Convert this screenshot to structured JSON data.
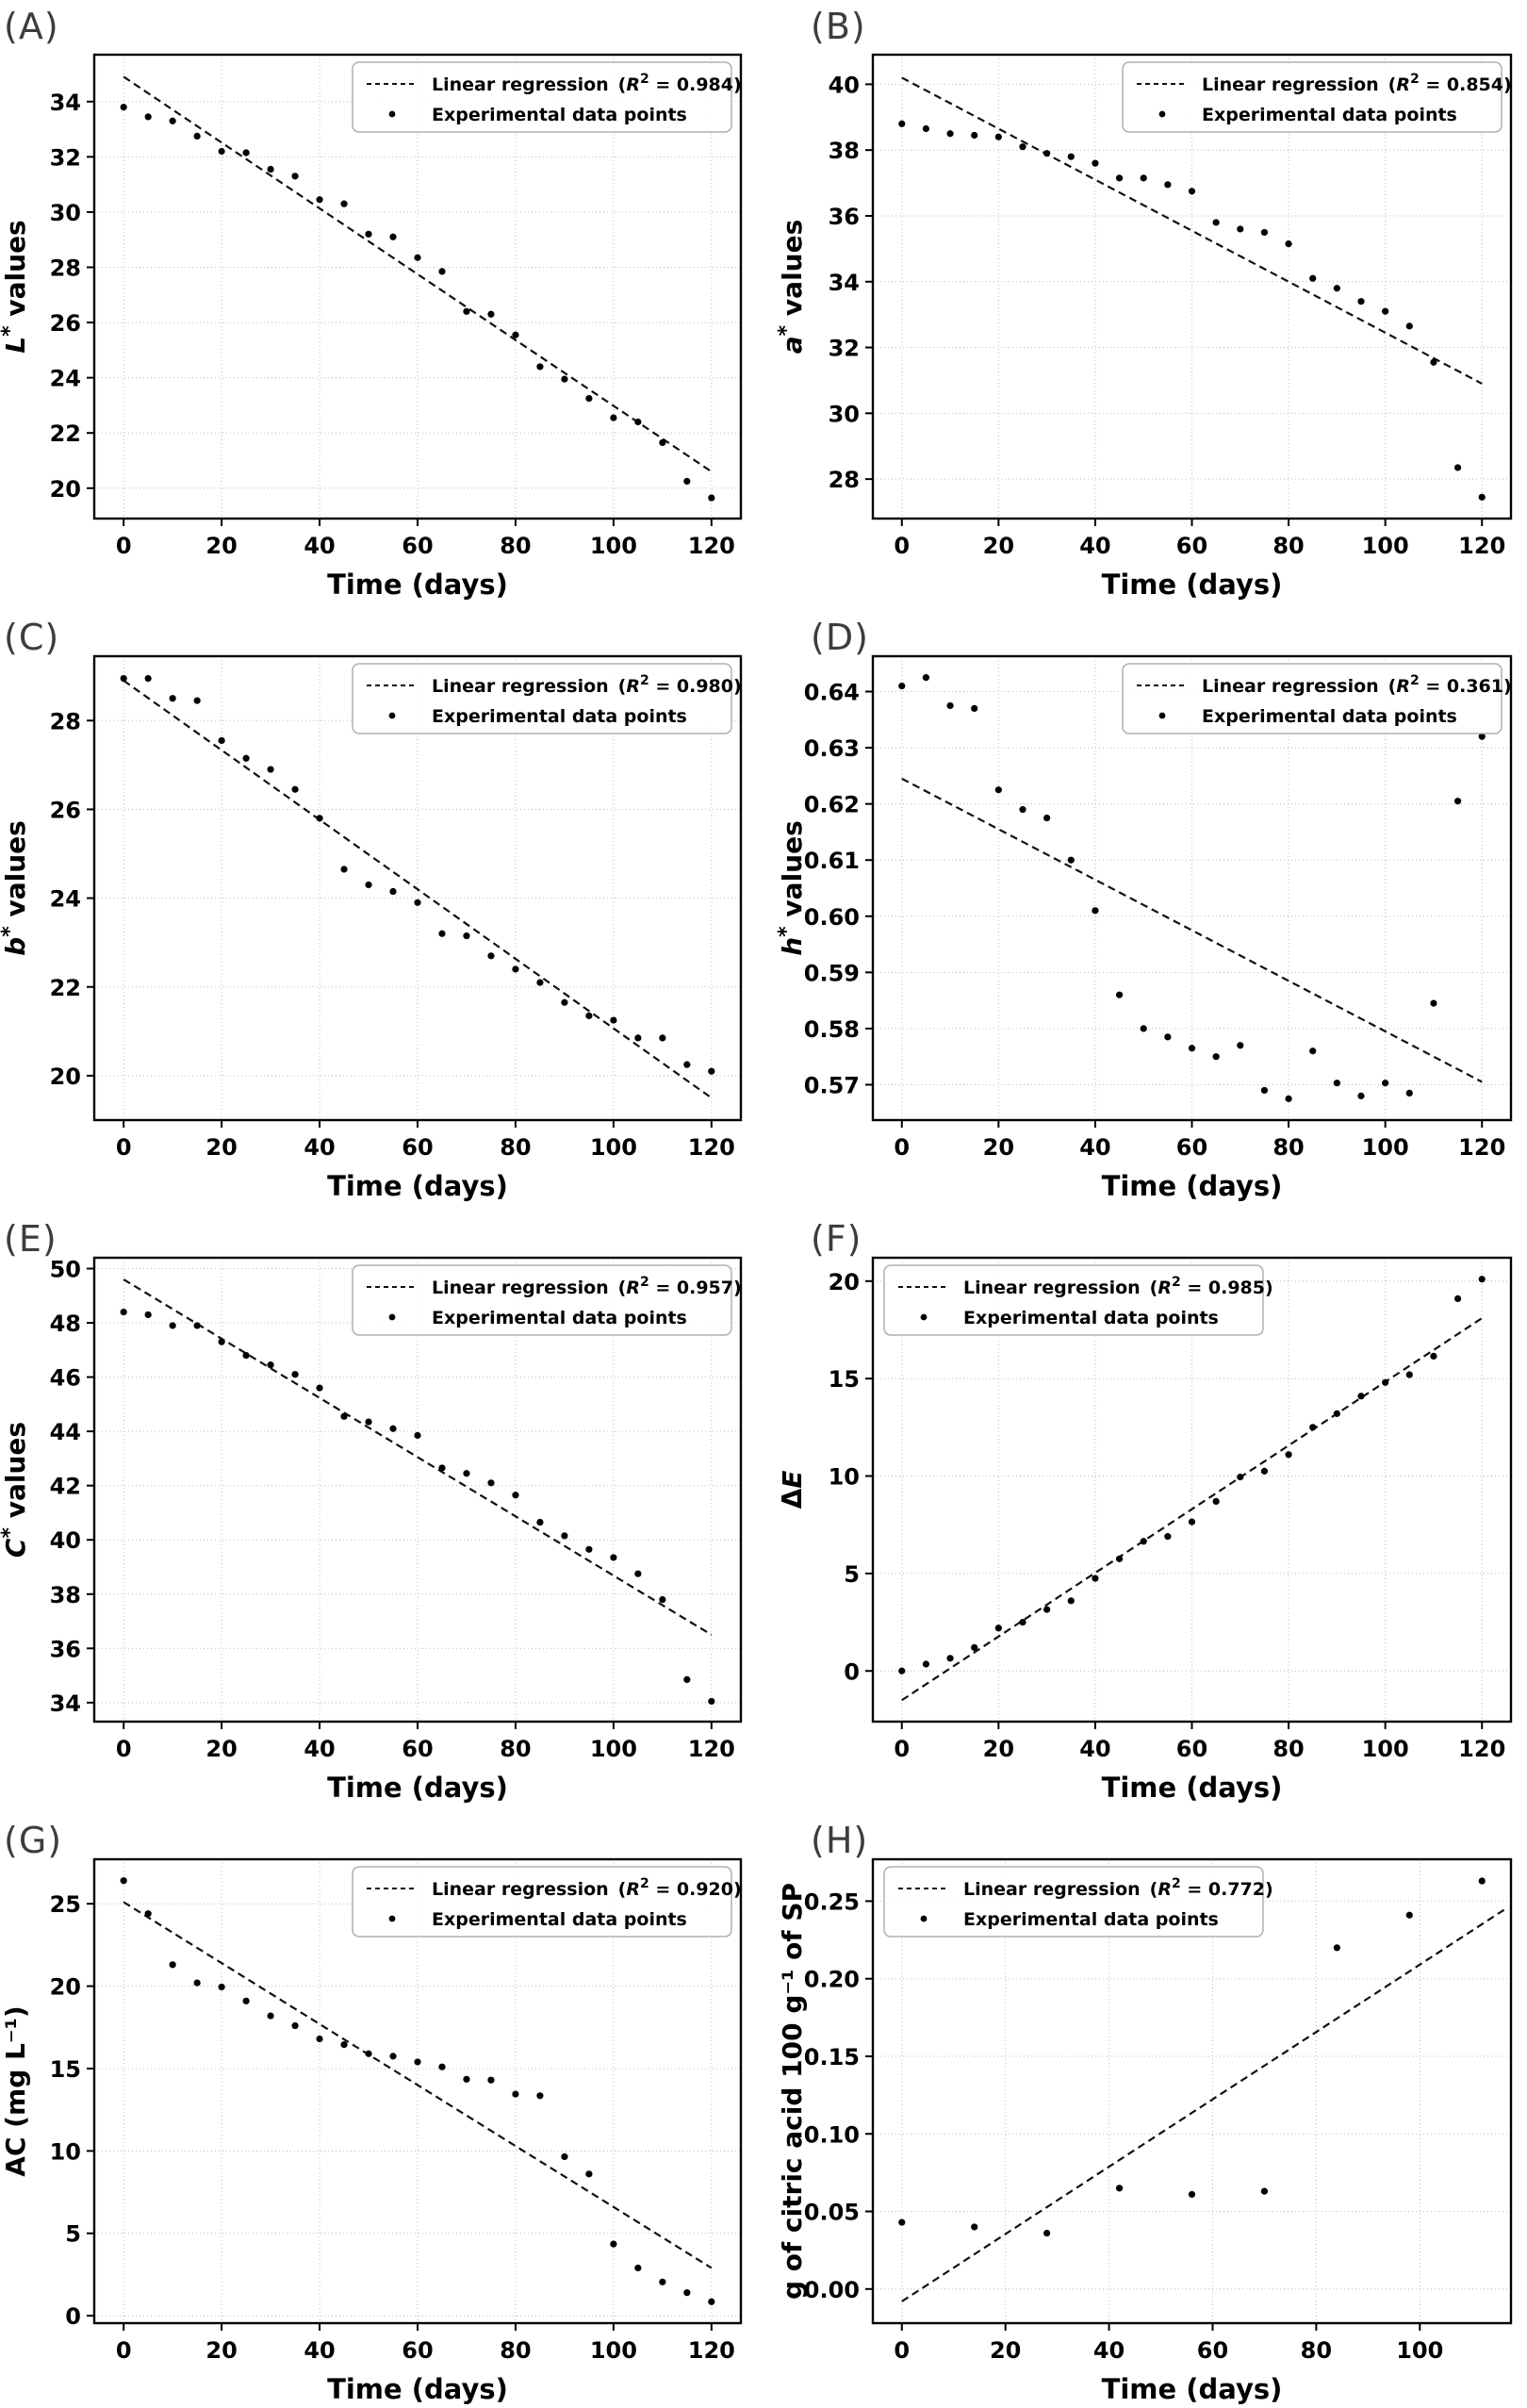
{
  "figure": {
    "xlabel": "Time (days)",
    "legend_line_label": "Linear regression",
    "legend_points_label": "Experimental data points",
    "colors": {
      "points": "#000000",
      "regression": "#111111",
      "frame": "#000000",
      "grid": "#bbbbbb",
      "legend_border": "#b0b0b0",
      "text": "#000000",
      "panel_label": "#3d3d3d"
    }
  },
  "chart_data": [
    {
      "type": "scatter",
      "panel_label": "(A)",
      "ylabel": "L* values",
      "xlabel": "Time (days)",
      "r2": "0.984",
      "legend_position": "top-right",
      "x": [
        0,
        5,
        10,
        15,
        20,
        25,
        30,
        35,
        40,
        45,
        50,
        55,
        60,
        65,
        70,
        75,
        80,
        85,
        90,
        95,
        100,
        105,
        110,
        115,
        120
      ],
      "y": [
        33.8,
        33.45,
        33.3,
        32.75,
        32.2,
        32.15,
        31.55,
        31.3,
        30.45,
        30.3,
        29.2,
        29.1,
        28.35,
        27.85,
        26.4,
        26.3,
        25.55,
        24.4,
        23.95,
        23.25,
        22.55,
        22.4,
        21.65,
        20.25,
        19.65
      ],
      "regression_line": {
        "x": [
          0,
          120
        ],
        "y": [
          34.9,
          20.6
        ]
      },
      "xlim": [
        -6,
        126
      ],
      "ylim": [
        18.9,
        35.7
      ],
      "xticks": [
        0,
        20,
        40,
        60,
        80,
        100,
        120
      ],
      "xtick_labels": [
        "0",
        "20",
        "40",
        "60",
        "80",
        "100",
        "120"
      ],
      "yticks": [
        20,
        22,
        24,
        26,
        28,
        30,
        32,
        34
      ],
      "ytick_labels": [
        "20",
        "22",
        "24",
        "26",
        "28",
        "30",
        "32",
        "34"
      ],
      "grid": true
    },
    {
      "type": "scatter",
      "panel_label": "(B)",
      "ylabel": "a* values",
      "xlabel": "Time (days)",
      "r2": "0.854",
      "legend_position": "top-right",
      "x": [
        0,
        5,
        10,
        15,
        20,
        25,
        30,
        35,
        40,
        45,
        50,
        55,
        60,
        65,
        70,
        75,
        80,
        85,
        90,
        95,
        100,
        105,
        110,
        115,
        120
      ],
      "y": [
        38.8,
        38.65,
        38.5,
        38.45,
        38.4,
        38.1,
        37.9,
        37.8,
        37.6,
        37.15,
        37.15,
        36.95,
        36.75,
        35.8,
        35.6,
        35.5,
        35.15,
        34.1,
        33.8,
        33.4,
        33.1,
        32.65,
        31.55,
        28.35,
        27.45
      ],
      "regression_line": {
        "x": [
          0,
          120
        ],
        "y": [
          40.2,
          30.9
        ]
      },
      "xlim": [
        -6,
        126
      ],
      "ylim": [
        26.8,
        40.9
      ],
      "xticks": [
        0,
        20,
        40,
        60,
        80,
        100,
        120
      ],
      "xtick_labels": [
        "0",
        "20",
        "40",
        "60",
        "80",
        "100",
        "120"
      ],
      "yticks": [
        28,
        30,
        32,
        34,
        36,
        38,
        40
      ],
      "ytick_labels": [
        "28",
        "30",
        "32",
        "34",
        "36",
        "38",
        "40"
      ],
      "grid": true
    },
    {
      "type": "scatter",
      "panel_label": "(C)",
      "ylabel": "b* values",
      "xlabel": "Time (days)",
      "r2": "0.980",
      "legend_position": "top-right",
      "x": [
        0,
        5,
        10,
        15,
        20,
        25,
        30,
        35,
        40,
        45,
        50,
        55,
        60,
        65,
        70,
        75,
        80,
        85,
        90,
        95,
        100,
        105,
        110,
        115,
        120
      ],
      "y": [
        28.95,
        28.95,
        28.5,
        28.45,
        27.55,
        27.15,
        26.9,
        26.45,
        25.8,
        24.65,
        24.3,
        24.15,
        23.9,
        23.2,
        23.15,
        22.7,
        22.4,
        22.1,
        21.65,
        21.35,
        21.25,
        20.85,
        20.85,
        20.25,
        20.1
      ],
      "regression_line": {
        "x": [
          0,
          120
        ],
        "y": [
          28.9,
          19.5
        ]
      },
      "xlim": [
        -6,
        126
      ],
      "ylim": [
        19.0,
        29.45
      ],
      "xticks": [
        0,
        20,
        40,
        60,
        80,
        100,
        120
      ],
      "xtick_labels": [
        "0",
        "20",
        "40",
        "60",
        "80",
        "100",
        "120"
      ],
      "yticks": [
        20,
        22,
        24,
        26,
        28
      ],
      "ytick_labels": [
        "20",
        "22",
        "24",
        "26",
        "28"
      ],
      "grid": true
    },
    {
      "type": "scatter",
      "panel_label": "(D)",
      "ylabel": "h* values",
      "xlabel": "Time (days)",
      "r2": "0.361",
      "legend_position": "top-right",
      "x": [
        0,
        5,
        10,
        15,
        20,
        25,
        30,
        35,
        40,
        45,
        50,
        55,
        60,
        65,
        70,
        75,
        80,
        85,
        90,
        95,
        100,
        105,
        110,
        115,
        120
      ],
      "y": [
        0.641,
        0.6425,
        0.6375,
        0.637,
        0.6225,
        0.619,
        0.6175,
        0.61,
        0.601,
        0.586,
        0.58,
        0.5785,
        0.5765,
        0.575,
        0.577,
        0.569,
        0.5675,
        0.576,
        0.5703,
        0.568,
        0.5703,
        0.5685,
        0.5845,
        0.6205,
        0.632
      ],
      "regression_line": {
        "x": [
          0,
          120
        ],
        "y": [
          0.6245,
          0.5705
        ]
      },
      "xlim": [
        -6,
        126
      ],
      "ylim": [
        0.5637,
        0.6463
      ],
      "xticks": [
        0,
        20,
        40,
        60,
        80,
        100,
        120
      ],
      "xtick_labels": [
        "0",
        "20",
        "40",
        "60",
        "80",
        "100",
        "120"
      ],
      "yticks": [
        0.57,
        0.58,
        0.59,
        0.6,
        0.61,
        0.62,
        0.63,
        0.64
      ],
      "ytick_labels": [
        "0.57",
        "0.58",
        "0.59",
        "0.60",
        "0.61",
        "0.62",
        "0.63",
        "0.64"
      ],
      "grid": true
    },
    {
      "type": "scatter",
      "panel_label": "(E)",
      "ylabel": "C* values",
      "xlabel": "Time (days)",
      "r2": "0.957",
      "legend_position": "top-right",
      "x": [
        0,
        5,
        10,
        15,
        20,
        25,
        30,
        35,
        40,
        45,
        50,
        55,
        60,
        65,
        70,
        75,
        80,
        85,
        90,
        95,
        100,
        105,
        110,
        115,
        120
      ],
      "y": [
        48.4,
        48.3,
        47.9,
        47.9,
        47.3,
        46.8,
        46.45,
        46.1,
        45.6,
        44.55,
        44.35,
        44.1,
        43.85,
        42.65,
        42.45,
        42.1,
        41.65,
        40.65,
        40.15,
        39.65,
        39.35,
        38.75,
        37.8,
        34.85,
        34.05
      ],
      "regression_line": {
        "x": [
          0,
          120
        ],
        "y": [
          49.6,
          36.5
        ]
      },
      "xlim": [
        -6,
        126
      ],
      "ylim": [
        33.3,
        50.4
      ],
      "xticks": [
        0,
        20,
        40,
        60,
        80,
        100,
        120
      ],
      "xtick_labels": [
        "0",
        "20",
        "40",
        "60",
        "80",
        "100",
        "120"
      ],
      "yticks": [
        34,
        36,
        38,
        40,
        42,
        44,
        46,
        48,
        50
      ],
      "ytick_labels": [
        "34",
        "36",
        "38",
        "40",
        "42",
        "44",
        "46",
        "48",
        "50"
      ],
      "grid": true
    },
    {
      "type": "scatter",
      "panel_label": "(F)",
      "ylabel": "ΔE",
      "xlabel": "Time (days)",
      "r2": "0.985",
      "legend_position": "top-left",
      "x": [
        0,
        5,
        10,
        15,
        20,
        25,
        30,
        35,
        40,
        45,
        50,
        55,
        60,
        65,
        70,
        75,
        80,
        85,
        90,
        95,
        100,
        105,
        110,
        115,
        120
      ],
      "y": [
        0.0,
        0.35,
        0.65,
        1.2,
        2.2,
        2.5,
        3.15,
        3.6,
        4.75,
        5.75,
        6.65,
        6.9,
        7.65,
        8.7,
        9.95,
        10.25,
        11.1,
        12.5,
        13.2,
        14.1,
        14.8,
        15.2,
        16.15,
        19.1,
        20.1
      ],
      "regression_line": {
        "x": [
          0,
          120
        ],
        "y": [
          -1.5,
          18.1
        ]
      },
      "xlim": [
        -6,
        126
      ],
      "ylim": [
        -2.6,
        21.2
      ],
      "xticks": [
        0,
        20,
        40,
        60,
        80,
        100,
        120
      ],
      "xtick_labels": [
        "0",
        "20",
        "40",
        "60",
        "80",
        "100",
        "120"
      ],
      "yticks": [
        0,
        5,
        10,
        15,
        20
      ],
      "ytick_labels": [
        "0",
        "5",
        "10",
        "15",
        "20"
      ],
      "grid": true
    },
    {
      "type": "scatter",
      "panel_label": "(G)",
      "ylabel": "AC (mg L⁻¹)",
      "xlabel": "Time (days)",
      "r2": "0.920",
      "legend_position": "top-right",
      "x": [
        0,
        5,
        10,
        15,
        20,
        25,
        30,
        35,
        40,
        45,
        50,
        55,
        60,
        65,
        70,
        75,
        80,
        85,
        90,
        95,
        100,
        105,
        110,
        115,
        120
      ],
      "y": [
        26.4,
        24.4,
        21.3,
        20.2,
        19.95,
        19.1,
        18.2,
        17.6,
        16.8,
        16.45,
        15.9,
        15.75,
        15.4,
        15.1,
        14.35,
        14.3,
        13.45,
        13.35,
        9.65,
        8.6,
        4.35,
        2.9,
        2.05,
        1.4,
        0.85
      ],
      "regression_line": {
        "x": [
          0,
          120
        ],
        "y": [
          25.1,
          2.9
        ]
      },
      "xlim": [
        -6,
        126
      ],
      "ylim": [
        -0.45,
        27.7
      ],
      "xticks": [
        0,
        20,
        40,
        60,
        80,
        100,
        120
      ],
      "xtick_labels": [
        "0",
        "20",
        "40",
        "60",
        "80",
        "100",
        "120"
      ],
      "yticks": [
        0,
        5,
        10,
        15,
        20,
        25
      ],
      "ytick_labels": [
        "0",
        "5",
        "10",
        "15",
        "20",
        "25"
      ],
      "grid": true
    },
    {
      "type": "scatter",
      "panel_label": "(H)",
      "ylabel": "g of citric acid 100 g⁻¹ of SP",
      "xlabel": "Time (days)",
      "r2": "0.772",
      "legend_position": "top-left",
      "x": [
        0,
        14,
        28,
        42,
        56,
        70,
        84,
        98,
        112
      ],
      "y": [
        0.043,
        0.04,
        0.036,
        0.065,
        0.061,
        0.063,
        0.22,
        0.241,
        0.263
      ],
      "regression_line": {
        "x": [
          0,
          117
        ],
        "y": [
          -0.008,
          0.246
        ]
      },
      "xlim": [
        -5.6,
        117.6
      ],
      "ylim": [
        -0.022,
        0.277
      ],
      "xticks": [
        0,
        20,
        40,
        60,
        80,
        100
      ],
      "xtick_labels": [
        "0",
        "20",
        "40",
        "60",
        "80",
        "100"
      ],
      "yticks": [
        0.0,
        0.05,
        0.1,
        0.15,
        0.2,
        0.25
      ],
      "ytick_labels": [
        "0.00",
        "0.05",
        "0.10",
        "0.15",
        "0.20",
        "0.25"
      ],
      "grid": true
    }
  ]
}
